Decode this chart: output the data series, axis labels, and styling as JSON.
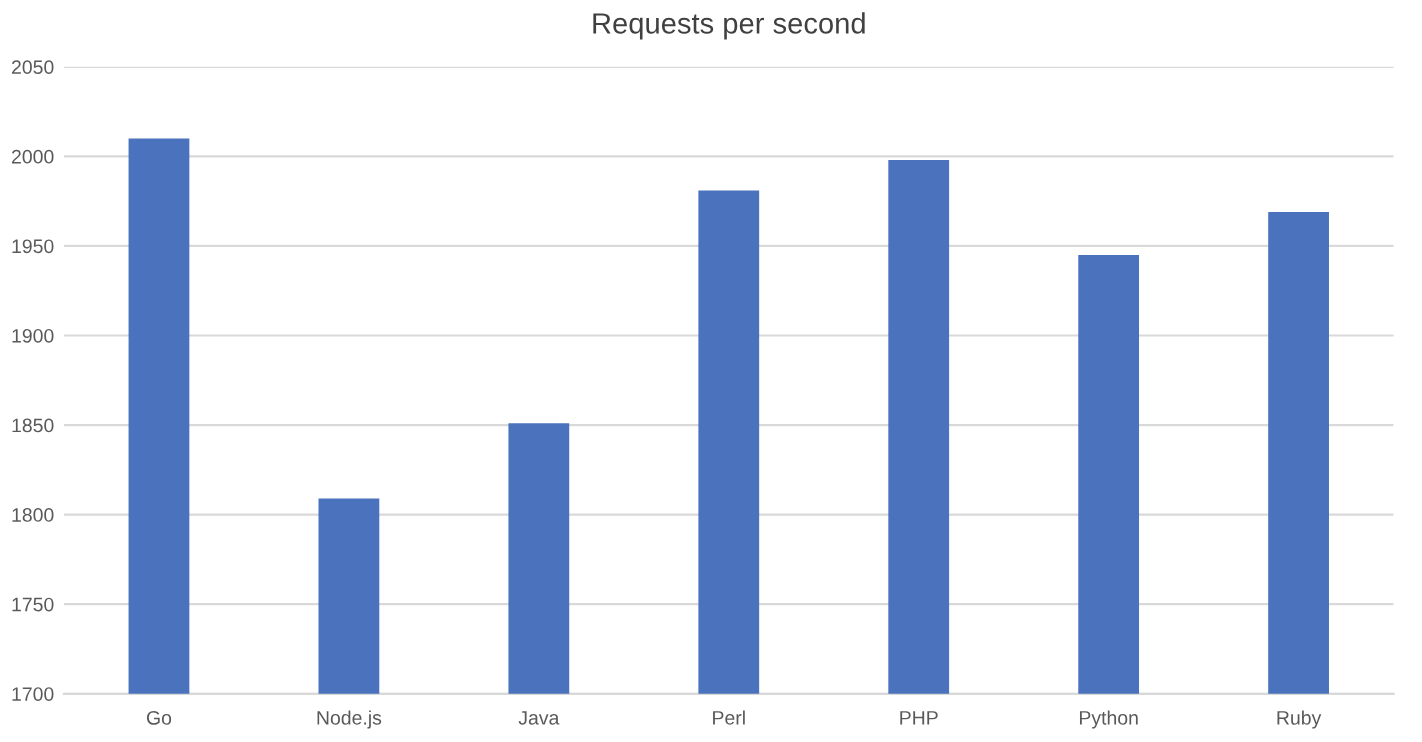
{
  "chart_data": {
    "type": "bar",
    "title": "Requests per second",
    "categories": [
      "Go",
      "Node.js",
      "Java",
      "Perl",
      "PHP",
      "Python",
      "Ruby"
    ],
    "values": [
      2010,
      1809,
      1851,
      1981,
      1998,
      1945,
      1969
    ],
    "color": "#4a72bd",
    "ylim": [
      1700,
      2050
    ],
    "yticks": [
      1700,
      1750,
      1800,
      1850,
      1900,
      1950,
      2000,
      2050
    ],
    "grid": "y",
    "legend": false
  }
}
